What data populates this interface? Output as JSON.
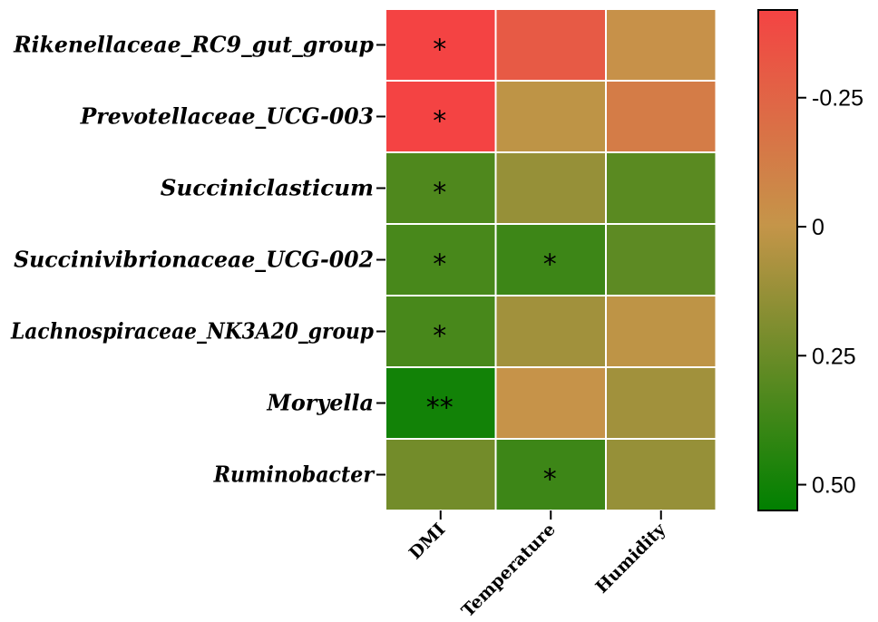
{
  "chart_data": {
    "type": "heatmap",
    "rows": [
      "Rikenellaceae_RC9_gut_group",
      "Prevotellaceae_UCG-003",
      "Succiniclasticum",
      "Succinivibrionaceae_UCG-002",
      "Lachnospiraceae_NK3A20_group",
      "Moryella",
      "Ruminobacter"
    ],
    "columns": [
      "DMI",
      "Temperature",
      "Humidity"
    ],
    "values": [
      [
        -0.42,
        -0.3,
        -0.02
      ],
      [
        -0.42,
        0.02,
        -0.13
      ],
      [
        0.33,
        0.13,
        0.3
      ],
      [
        0.35,
        0.38,
        0.29
      ],
      [
        0.35,
        0.1,
        0.02
      ],
      [
        0.5,
        -0.01,
        0.1
      ],
      [
        0.23,
        0.38,
        0.13
      ]
    ],
    "significance": [
      [
        "*",
        "",
        ""
      ],
      [
        "*",
        "",
        ""
      ],
      [
        "*",
        "",
        ""
      ],
      [
        "*",
        "*",
        ""
      ],
      [
        "*",
        "",
        ""
      ],
      [
        "**",
        "",
        ""
      ],
      [
        "",
        "*",
        ""
      ]
    ],
    "colorbar": {
      "ticks": [
        "-0.25",
        "0",
        "0.25",
        "0.50"
      ],
      "tick_values": [
        -0.25,
        0,
        0.25,
        0.5
      ],
      "range": [
        -0.42,
        0.55
      ],
      "colors": {
        "top": "#f44343",
        "middle": "#c59549",
        "bottom": "#008000"
      }
    },
    "grid_color": "#ffffff"
  }
}
